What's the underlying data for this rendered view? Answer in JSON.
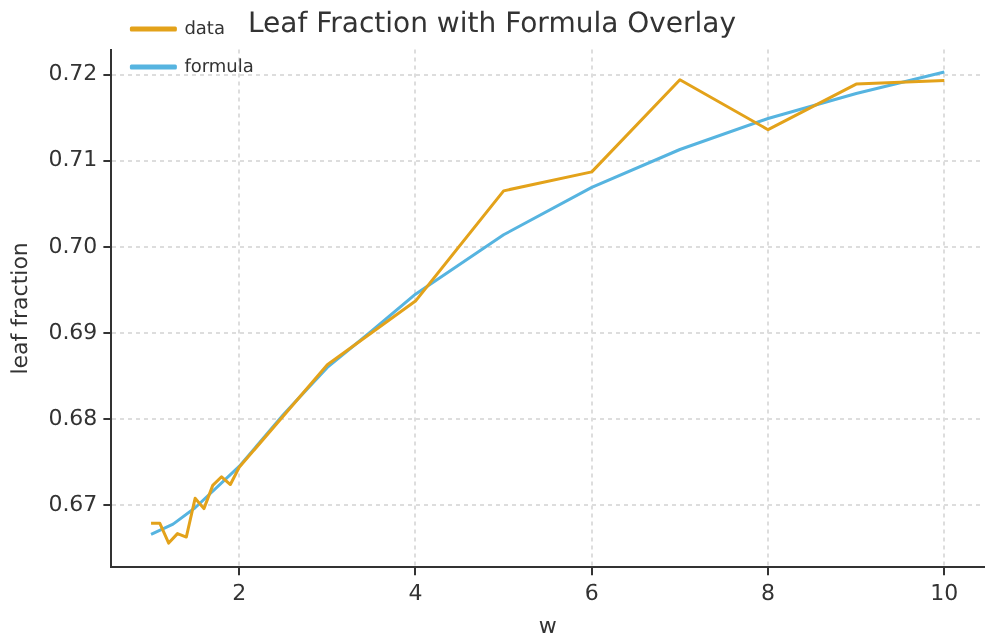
{
  "chart_data": {
    "type": "line",
    "title": "Leaf Fraction with Formula Overlay",
    "xlabel": "w",
    "ylabel": "leaf fraction",
    "xlim": [
      0.55,
      10.45
    ],
    "xticks": [
      2,
      4,
      6,
      8,
      10
    ],
    "ylim": [
      0.6628,
      0.7229
    ],
    "yticks": [
      {
        "value": 0.67,
        "label": "0.67"
      },
      {
        "value": 0.68,
        "label": "0.68"
      },
      {
        "value": 0.69,
        "label": "0.69"
      },
      {
        "value": 0.7,
        "label": "0.70"
      },
      {
        "value": 0.71,
        "label": "0.71"
      },
      {
        "value": 0.72,
        "label": "0.72"
      }
    ],
    "grid": true,
    "legend": "top left",
    "marker": "none",
    "line_style": "solid",
    "series": [
      {
        "name": "data",
        "color": "#e3a21a",
        "x": [
          1,
          1.1,
          1.2,
          1.3,
          1.4,
          1.5,
          1.6,
          1.7,
          1.8,
          1.9,
          2,
          3,
          4,
          5,
          6,
          7,
          8,
          9,
          10
        ],
        "values": [
          0.6679,
          0.6679,
          0.6656,
          0.6667,
          0.6663,
          0.6708,
          0.6696,
          0.6723,
          0.6733,
          0.6724,
          0.6744,
          0.6863,
          0.6937,
          0.7065,
          0.7087,
          0.7194,
          0.7136,
          0.7189,
          0.7193
        ]
      },
      {
        "name": "formula",
        "color": "#56b4e0",
        "x": [
          1,
          1.25,
          1.5,
          2,
          2.5,
          3,
          3.5,
          4,
          5,
          6,
          7,
          8,
          9,
          10
        ],
        "values": [
          0.6666,
          0.6678,
          0.6697,
          0.6745,
          0.6805,
          0.686,
          0.6902,
          0.6945,
          0.7014,
          0.7069,
          0.7113,
          0.7149,
          0.7178,
          0.7203
        ]
      }
    ]
  }
}
